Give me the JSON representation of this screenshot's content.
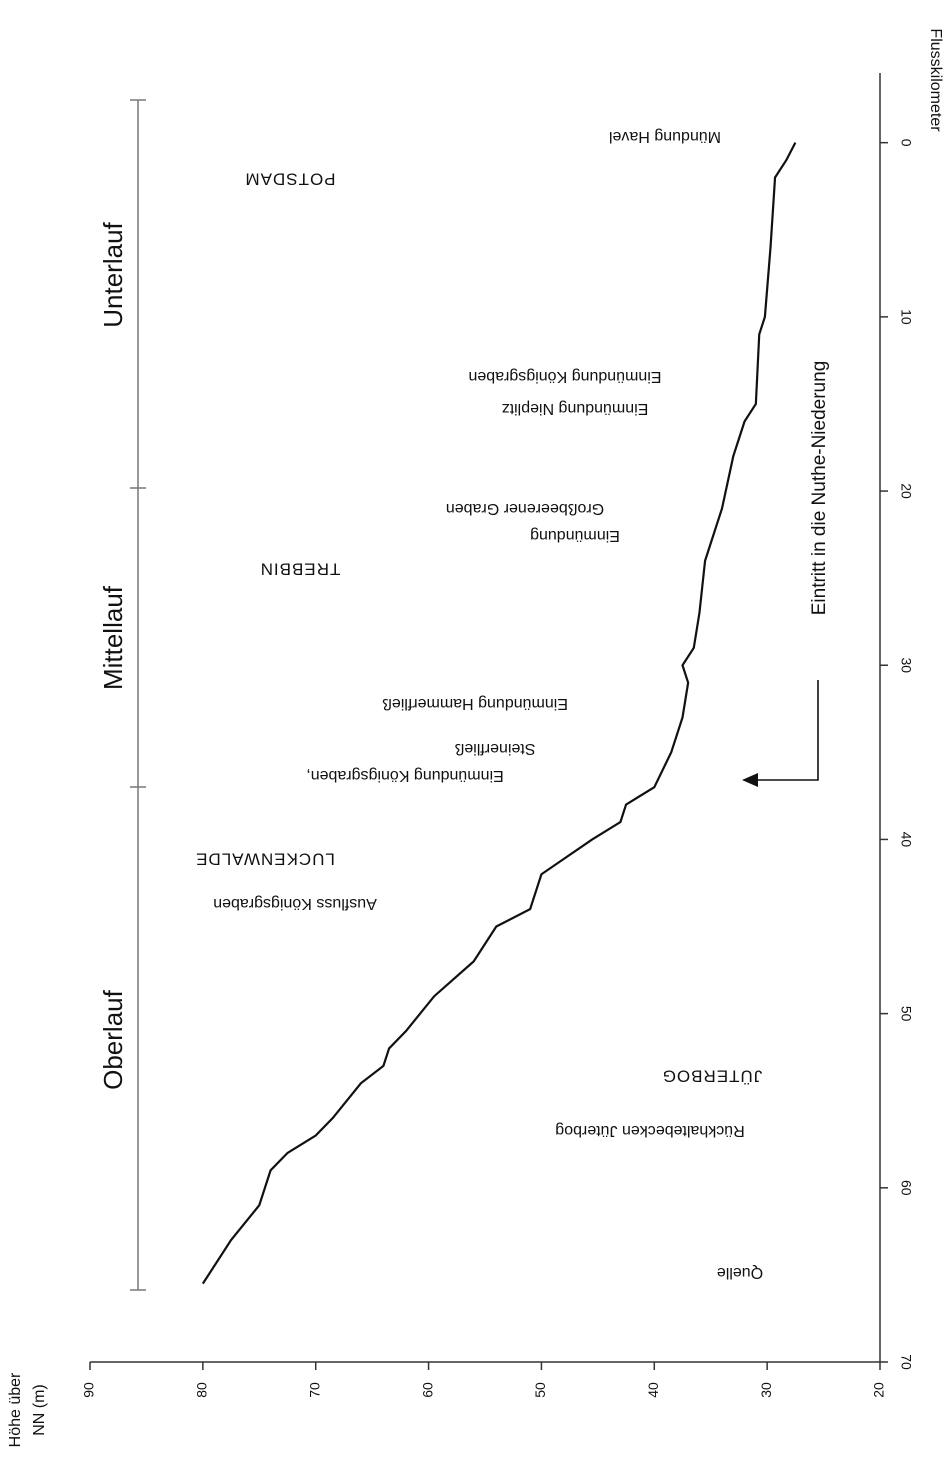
{
  "chart_data": {
    "type": "line",
    "x_label": "Flusskilometer",
    "y_label": [
      "Höhe über",
      "NN (m)"
    ],
    "x": [
      0,
      1,
      2,
      6,
      10,
      11,
      15,
      16,
      18,
      21,
      24,
      27,
      29,
      30,
      31,
      33,
      35,
      37,
      38,
      39,
      40,
      42,
      44,
      45,
      47,
      49,
      51,
      52,
      53,
      54,
      56,
      57,
      58,
      59,
      61,
      63,
      65.5
    ],
    "values": [
      27.5,
      28.3,
      29.3,
      29.7,
      30.2,
      30.7,
      31,
      32,
      33,
      34,
      35.5,
      36,
      36.5,
      37.5,
      37,
      37.5,
      38.5,
      40,
      42.5,
      43,
      45.5,
      50,
      51,
      54,
      56,
      59.5,
      62,
      63.5,
      64,
      66,
      68.5,
      70,
      72.5,
      74,
      75,
      77.5,
      80
    ],
    "color": "#111111",
    "xlim": [
      -4,
      70
    ],
    "xticks": [
      0,
      10,
      20,
      30,
      40,
      50,
      60,
      70
    ],
    "ylim": [
      20,
      90
    ],
    "yticks": [
      20,
      30,
      40,
      50,
      60,
      70,
      80,
      90
    ],
    "sections": [
      "Unterlauf",
      "Mittellauf",
      "Oberlauf"
    ],
    "arrow_label": "Eintritt in die Nuthe-Niederung",
    "annotations": [
      "Mündung Havel",
      "POTSDAM",
      "Einmündung Königsgraben",
      "Einmündung Nieplitz",
      "Großbeerener Graben",
      "Einmündung",
      "TREBBIN",
      "Einmündung Hammerfließ",
      "Steinerfließ",
      "Einmündung Königsgraben,",
      "LUCKENWALDE",
      "Ausfluss Königsgraben",
      "JÜTERBOG",
      "Rückhaltebecken Jüterbog",
      "Quelle"
    ]
  }
}
